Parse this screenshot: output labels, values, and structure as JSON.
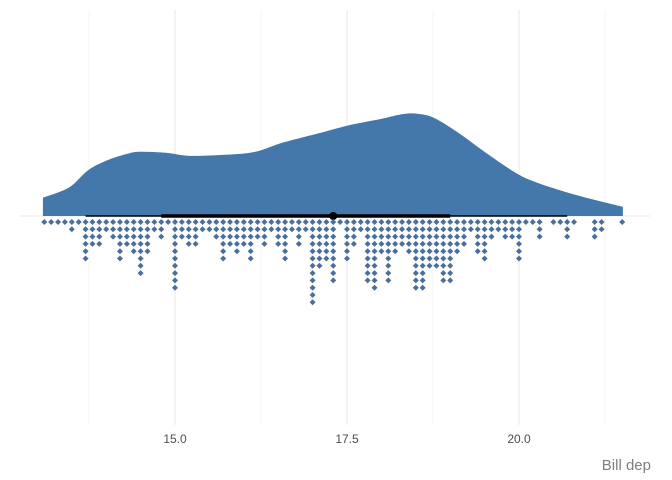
{
  "chart_data": {
    "type": "raincloud",
    "title": "",
    "xlabel": "Bill dep",
    "ylabel": "",
    "xlim": [
      13.0,
      21.6
    ],
    "x_ticks": [
      "15.0",
      "17.5",
      "20.0"
    ],
    "x_tick_values": [
      15.0,
      17.5,
      20.0
    ],
    "grid": true,
    "colors": {
      "density": "#4477AA",
      "dots": "#4A6F9A",
      "interval": "#000000",
      "grid": "#EBEBEB",
      "xlabel": "#7F7F7F"
    },
    "density_relative": [
      [
        13.08,
        0.18
      ],
      [
        13.46,
        0.28
      ],
      [
        13.74,
        0.45
      ],
      [
        14.03,
        0.55
      ],
      [
        14.31,
        0.61
      ],
      [
        14.48,
        0.63
      ],
      [
        14.87,
        0.62
      ],
      [
        15.21,
        0.59
      ],
      [
        15.72,
        0.6
      ],
      [
        16.17,
        0.63
      ],
      [
        16.57,
        0.72
      ],
      [
        17.14,
        0.82
      ],
      [
        17.53,
        0.89
      ],
      [
        17.98,
        0.95
      ],
      [
        18.32,
        1.0
      ],
      [
        18.55,
        1.0
      ],
      [
        18.77,
        0.96
      ],
      [
        19.11,
        0.82
      ],
      [
        19.56,
        0.6
      ],
      [
        19.96,
        0.42
      ],
      [
        20.25,
        0.33
      ],
      [
        20.81,
        0.21
      ],
      [
        21.51,
        0.09
      ]
    ],
    "interval": {
      "point": 17.3,
      "inner": [
        14.8,
        19.0
      ],
      "outer": [
        13.7,
        20.7
      ]
    },
    "dots": [
      [
        13.1,
        1
      ],
      [
        13.2,
        1
      ],
      [
        13.3,
        1
      ],
      [
        13.4,
        1
      ],
      [
        13.5,
        2
      ],
      [
        13.6,
        1
      ],
      [
        13.7,
        6
      ],
      [
        13.8,
        4
      ],
      [
        13.9,
        4
      ],
      [
        14.0,
        2
      ],
      [
        14.1,
        3
      ],
      [
        14.2,
        6
      ],
      [
        14.3,
        4
      ],
      [
        14.4,
        5
      ],
      [
        14.5,
        8
      ],
      [
        14.6,
        5
      ],
      [
        14.7,
        2
      ],
      [
        14.8,
        3
      ],
      [
        14.9,
        1
      ],
      [
        15.0,
        10
      ],
      [
        15.1,
        3
      ],
      [
        15.2,
        4
      ],
      [
        15.3,
        4
      ],
      [
        15.4,
        2
      ],
      [
        15.5,
        2
      ],
      [
        15.6,
        3
      ],
      [
        15.7,
        6
      ],
      [
        15.8,
        4
      ],
      [
        15.9,
        5
      ],
      [
        16.0,
        4
      ],
      [
        16.1,
        6
      ],
      [
        16.2,
        3
      ],
      [
        16.3,
        4
      ],
      [
        16.4,
        2
      ],
      [
        16.5,
        4
      ],
      [
        16.6,
        6
      ],
      [
        16.7,
        2
      ],
      [
        16.8,
        4
      ],
      [
        16.9,
        2
      ],
      [
        17.0,
        12
      ],
      [
        17.1,
        7
      ],
      [
        17.2,
        6
      ],
      [
        17.3,
        9
      ],
      [
        17.4,
        1
      ],
      [
        17.5,
        6
      ],
      [
        17.6,
        4
      ],
      [
        17.7,
        2
      ],
      [
        17.8,
        9
      ],
      [
        17.9,
        10
      ],
      [
        18.0,
        5
      ],
      [
        18.1,
        9
      ],
      [
        18.2,
        5
      ],
      [
        18.3,
        4
      ],
      [
        18.4,
        5
      ],
      [
        18.5,
        10
      ],
      [
        18.6,
        10
      ],
      [
        18.7,
        7
      ],
      [
        18.8,
        7
      ],
      [
        18.9,
        9
      ],
      [
        19.0,
        9
      ],
      [
        19.1,
        5
      ],
      [
        19.2,
        4
      ],
      [
        19.3,
        2
      ],
      [
        19.4,
        5
      ],
      [
        19.5,
        6
      ],
      [
        19.6,
        3
      ],
      [
        19.7,
        2
      ],
      [
        19.8,
        3
      ],
      [
        19.9,
        3
      ],
      [
        20.0,
        6
      ],
      [
        20.1,
        1
      ],
      [
        20.2,
        1
      ],
      [
        20.3,
        3
      ],
      [
        20.5,
        1
      ],
      [
        20.6,
        1
      ],
      [
        20.7,
        3
      ],
      [
        20.8,
        1
      ],
      [
        21.1,
        3
      ],
      [
        21.2,
        2
      ],
      [
        21.5,
        1
      ]
    ]
  }
}
